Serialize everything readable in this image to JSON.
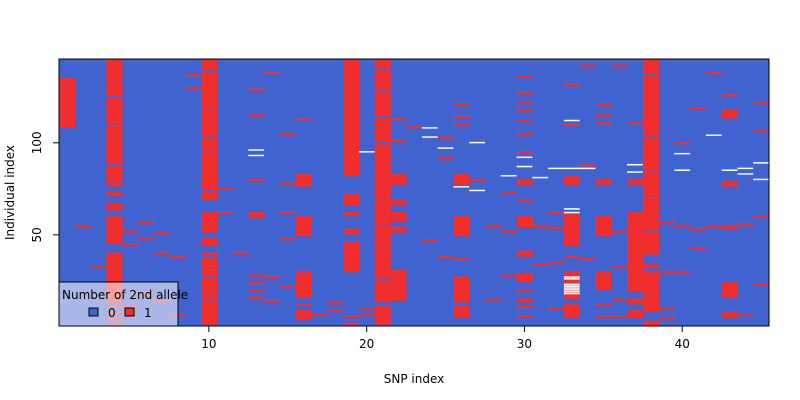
{
  "chart_data": {
    "type": "heatmap",
    "title": "",
    "xlabel": "SNP index",
    "ylabel": "Individual index",
    "xlim": [
      0.5,
      45.5
    ],
    "ylim": [
      0.5,
      145.5
    ],
    "y_reversed": true,
    "x_ticks": [
      10,
      20,
      30,
      40
    ],
    "y_ticks": [
      50,
      100
    ],
    "grid": false,
    "legend": {
      "title": "Number of 2nd allele",
      "placement": "bottom-left",
      "entries": [
        {
          "label": "0",
          "color": "#4063CF"
        },
        {
          "label": "1",
          "color": "#F12E2E"
        }
      ]
    },
    "n_snps": 45,
    "n_individuals": 145,
    "color_scale": {
      "0": "#4063CF",
      "1": "#F12E2E",
      "missing": "#FFFFFF"
    },
    "columns": [
      {
        "snp": 1,
        "red_runs": [
          [
            109,
            135
          ]
        ]
      },
      {
        "snp": 2,
        "red_runs": [
          [
            55,
            55
          ]
        ]
      },
      {
        "snp": 3,
        "red_runs": [
          [
            33,
            33
          ]
        ]
      },
      {
        "snp": 4,
        "red_runs": [
          [
            2,
            2
          ],
          [
            5,
            5
          ],
          [
            8,
            8
          ],
          [
            11,
            11
          ],
          [
            14,
            40
          ],
          [
            46,
            60
          ],
          [
            64,
            67
          ],
          [
            72,
            73
          ],
          [
            77,
            78
          ],
          [
            80,
            145
          ]
        ]
      },
      {
        "snp": 5,
        "red_runs": [
          [
            11,
            11
          ],
          [
            45,
            45
          ],
          [
            52,
            52
          ]
        ]
      },
      {
        "snp": 6,
        "red_runs": [
          [
            18,
            18
          ],
          [
            48,
            48
          ],
          [
            57,
            57
          ]
        ]
      },
      {
        "snp": 7,
        "red_runs": [
          [
            14,
            14
          ],
          [
            40,
            40
          ],
          [
            51,
            51
          ]
        ]
      },
      {
        "snp": 8,
        "red_runs": [
          [
            7,
            7
          ],
          [
            38,
            38
          ]
        ]
      },
      {
        "snp": 9,
        "red_runs": [
          [
            130,
            130
          ],
          [
            137,
            137
          ]
        ]
      },
      {
        "snp": 10,
        "red_runs": [
          [
            2,
            14
          ],
          [
            16,
            40
          ],
          [
            45,
            48
          ],
          [
            52,
            62
          ],
          [
            70,
            145
          ]
        ]
      },
      {
        "snp": 11,
        "red_runs": [
          [
            62,
            62
          ],
          [
            75,
            75
          ]
        ]
      },
      {
        "snp": 12,
        "red_runs": [
          [
            40,
            40
          ]
        ]
      },
      {
        "snp": 13,
        "red_runs": [
          [
            16,
            16
          ],
          [
            20,
            20
          ],
          [
            24,
            24
          ],
          [
            28,
            28
          ],
          [
            60,
            62
          ],
          [
            80,
            80
          ],
          [
            115,
            115
          ],
          [
            129,
            129
          ]
        ]
      },
      {
        "snp": 14,
        "red_runs": [
          [
            14,
            14
          ],
          [
            27,
            27
          ],
          [
            138,
            138
          ]
        ]
      },
      {
        "snp": 15,
        "red_runs": [
          [
            22,
            22
          ],
          [
            48,
            48
          ],
          [
            62,
            62
          ],
          [
            78,
            78
          ],
          [
            105,
            105
          ]
        ]
      },
      {
        "snp": 16,
        "red_runs": [
          [
            5,
            9
          ],
          [
            12,
            12
          ],
          [
            17,
            30
          ],
          [
            50,
            60
          ],
          [
            77,
            83
          ],
          [
            113,
            113
          ]
        ]
      },
      {
        "snp": 17,
        "red_runs": [
          [
            7,
            7
          ]
        ]
      },
      {
        "snp": 18,
        "red_runs": [
          [
            9,
            9
          ],
          [
            13,
            13
          ]
        ]
      },
      {
        "snp": 19,
        "red_runs": [
          [
            2,
            2
          ],
          [
            6,
            6
          ],
          [
            31,
            46
          ],
          [
            51,
            53
          ],
          [
            61,
            62
          ],
          [
            67,
            72
          ],
          [
            83,
            145
          ]
        ]
      },
      {
        "snp": 20,
        "red_runs": [
          [
            7,
            7
          ],
          [
            10,
            10
          ]
        ]
      },
      {
        "snp": 21,
        "red_runs": [
          [
            2,
            11
          ],
          [
            14,
            145
          ]
        ]
      },
      {
        "snp": 22,
        "red_runs": [
          [
            15,
            31
          ],
          [
            52,
            54
          ],
          [
            58,
            62
          ],
          [
            67,
            69
          ],
          [
            78,
            83
          ],
          [
            101,
            101
          ],
          [
            113,
            113
          ]
        ]
      },
      {
        "snp": 23,
        "red_runs": [
          [
            109,
            109
          ]
        ]
      },
      {
        "snp": 24,
        "red_runs": [
          [
            47,
            47
          ]
        ]
      },
      {
        "snp": 25,
        "red_runs": [
          [
            38,
            38
          ],
          [
            92,
            92
          ],
          [
            103,
            103
          ]
        ]
      },
      {
        "snp": 26,
        "red_runs": [
          [
            6,
            11
          ],
          [
            14,
            27
          ],
          [
            37,
            37
          ],
          [
            50,
            60
          ],
          [
            78,
            83
          ],
          [
            110,
            110
          ],
          [
            114,
            114
          ],
          [
            121,
            121
          ]
        ]
      },
      {
        "snp": 27,
        "red_runs": [
          [
            80,
            80
          ]
        ]
      },
      {
        "snp": 28,
        "red_runs": [
          [
            15,
            15
          ],
          [
            55,
            55
          ]
        ]
      },
      {
        "snp": 29,
        "red_runs": [
          [
            28,
            28
          ],
          [
            52,
            52
          ],
          [
            73,
            73
          ]
        ]
      },
      {
        "snp": 30,
        "red_runs": [
          [
            6,
            6
          ],
          [
            11,
            11
          ],
          [
            14,
            15
          ],
          [
            20,
            20
          ],
          [
            25,
            29
          ],
          [
            39,
            41
          ],
          [
            55,
            60
          ],
          [
            69,
            69
          ],
          [
            78,
            80
          ],
          [
            87,
            87
          ],
          [
            95,
            95
          ],
          [
            105,
            105
          ],
          [
            112,
            112
          ],
          [
            118,
            118
          ],
          [
            122,
            122
          ],
          [
            127,
            127
          ],
          [
            136,
            136
          ]
        ]
      },
      {
        "snp": 31,
        "red_runs": [
          [
            34,
            34
          ],
          [
            55,
            55
          ]
        ]
      },
      {
        "snp": 32,
        "red_runs": [
          [
            10,
            10
          ],
          [
            35,
            35
          ],
          [
            54,
            54
          ],
          [
            62,
            62
          ]
        ]
      },
      {
        "snp": 33,
        "red_runs": [
          [
            6,
            12
          ],
          [
            16,
            30
          ],
          [
            38,
            38
          ],
          [
            45,
            62
          ],
          [
            78,
            82
          ],
          [
            110,
            110
          ],
          [
            132,
            132
          ]
        ]
      },
      {
        "snp": 34,
        "red_runs": [
          [
            37,
            37
          ],
          [
            88,
            88
          ],
          [
            142,
            142
          ]
        ]
      },
      {
        "snp": 35,
        "red_runs": [
          [
            6,
            6
          ],
          [
            12,
            12
          ],
          [
            21,
            30
          ],
          [
            50,
            60
          ],
          [
            78,
            80
          ],
          [
            111,
            111
          ],
          [
            115,
            115
          ],
          [
            121,
            121
          ]
        ]
      },
      {
        "snp": 36,
        "red_runs": [
          [
            6,
            6
          ],
          [
            15,
            15
          ],
          [
            33,
            33
          ],
          [
            52,
            52
          ],
          [
            142,
            142
          ]
        ]
      },
      {
        "snp": 37,
        "red_runs": [
          [
            6,
            9
          ],
          [
            13,
            15
          ],
          [
            20,
            62
          ],
          [
            78,
            80
          ],
          [
            111,
            111
          ]
        ]
      },
      {
        "snp": 38,
        "red_runs": [
          [
            1,
            3
          ],
          [
            9,
            30
          ],
          [
            33,
            34
          ],
          [
            40,
            145
          ]
        ]
      },
      {
        "snp": 39,
        "red_runs": [
          [
            5,
            5
          ],
          [
            10,
            10
          ],
          [
            30,
            30
          ],
          [
            57,
            57
          ]
        ]
      },
      {
        "snp": 40,
        "red_runs": [
          [
            30,
            30
          ],
          [
            55,
            55
          ],
          [
            100,
            100
          ]
        ]
      },
      {
        "snp": 41,
        "red_runs": [
          [
            43,
            43
          ],
          [
            53,
            53
          ],
          [
            119,
            119
          ]
        ]
      },
      {
        "snp": 42,
        "red_runs": [
          [
            55,
            55
          ],
          [
            138,
            138
          ]
        ]
      },
      {
        "snp": 43,
        "red_runs": [
          [
            6,
            8
          ],
          [
            17,
            24
          ],
          [
            54,
            55
          ],
          [
            77,
            79
          ],
          [
            114,
            118
          ],
          [
            126,
            126
          ]
        ]
      },
      {
        "snp": 44,
        "red_runs": [
          [
            7,
            7
          ],
          [
            56,
            56
          ]
        ]
      },
      {
        "snp": 45,
        "red_runs": [
          [
            23,
            23
          ],
          [
            60,
            60
          ],
          [
            107,
            107
          ],
          [
            122,
            122
          ]
        ]
      }
    ],
    "missing_cells": [
      [
        33,
        18
      ],
      [
        33,
        19
      ],
      [
        33,
        20
      ],
      [
        33,
        21
      ],
      [
        33,
        22
      ],
      [
        33,
        23
      ],
      [
        33,
        26
      ],
      [
        33,
        27
      ],
      [
        33,
        62
      ],
      [
        33,
        64
      ],
      [
        33,
        86
      ],
      [
        33,
        112
      ],
      [
        26,
        76
      ],
      [
        27,
        74
      ],
      [
        29,
        82
      ],
      [
        31,
        81
      ],
      [
        32,
        86
      ],
      [
        34,
        86
      ],
      [
        37,
        84
      ],
      [
        40,
        85
      ],
      [
        43,
        85
      ],
      [
        44,
        83
      ],
      [
        44,
        86
      ],
      [
        13,
        93
      ],
      [
        13,
        96
      ],
      [
        20,
        95
      ],
      [
        24,
        103
      ],
      [
        25,
        97
      ],
      [
        24,
        108
      ],
      [
        27,
        100
      ],
      [
        30,
        92
      ],
      [
        30,
        87
      ],
      [
        37,
        88
      ],
      [
        40,
        94
      ],
      [
        42,
        104
      ],
      [
        45,
        89
      ],
      [
        45,
        80
      ]
    ],
    "dense_column_gaps": [
      {
        "snp": 4,
        "rows": [
          44,
          62,
          68,
          74,
          88,
          110,
          125,
          133
        ]
      },
      {
        "snp": 10,
        "rows": [
          19,
          27,
          32,
          38,
          64,
          67,
          74,
          96,
          103,
          118,
          139
        ]
      },
      {
        "snp": 21,
        "rows": [
          13,
          26,
          43,
          55,
          68,
          82,
          100,
          114,
          128,
          140
        ]
      },
      {
        "snp": 38,
        "rows": [
          5,
          19,
          37,
          52,
          71,
          85,
          103,
          119,
          137
        ]
      }
    ]
  }
}
